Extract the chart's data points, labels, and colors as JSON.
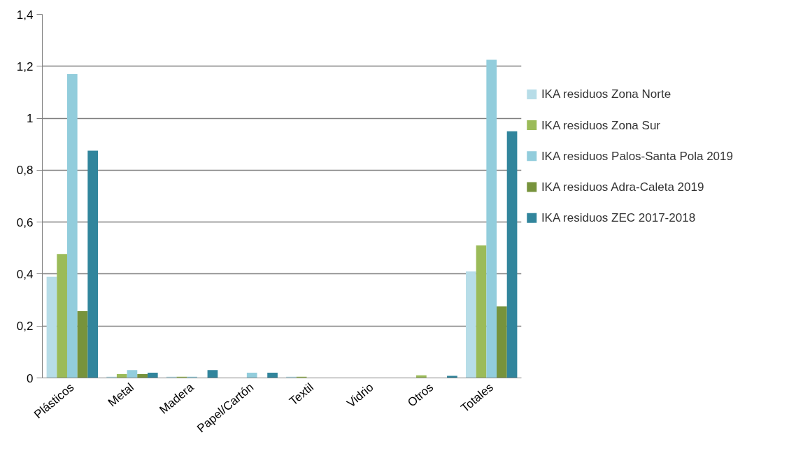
{
  "chart_data": {
    "type": "bar",
    "categories": [
      "Plásticos",
      "Metal",
      "Madera",
      "Papel/Cartón",
      "Textil",
      "Vidrio",
      "Otros",
      "Totales"
    ],
    "series": [
      {
        "name": "IKA residuos Zona Norte",
        "color": "#b7dde8",
        "values": [
          0.39,
          0.005,
          0.005,
          0,
          0.005,
          0,
          0,
          0.41
        ]
      },
      {
        "name": "IKA residuos Zona Sur",
        "color": "#9bbb59",
        "values": [
          0.477,
          0.015,
          0.005,
          0,
          0.005,
          0,
          0.01,
          0.51
        ]
      },
      {
        "name": "IKA residuos Palos-Santa Pola 2019",
        "color": "#92cddc",
        "values": [
          1.17,
          0.03,
          0.005,
          0.02,
          0,
          0,
          0,
          1.225
        ]
      },
      {
        "name": "IKA residuos Adra-Caleta 2019",
        "color": "#77933c",
        "values": [
          0.257,
          0.015,
          0,
          0,
          0,
          0,
          0,
          0.275
        ]
      },
      {
        "name": "IKA residuos ZEC 2017-2018",
        "color": "#31859c",
        "values": [
          0.875,
          0.02,
          0.03,
          0.02,
          0,
          0,
          0.008,
          0.95
        ]
      }
    ],
    "ylim": [
      0,
      1.4
    ],
    "yticks": [
      0,
      {
        "value": 0.2,
        "label": "0,2"
      },
      {
        "value": 0.4,
        "label": "0,4"
      },
      {
        "value": 0.6,
        "label": "0,6"
      },
      {
        "value": 0.8,
        "label": "0,8"
      },
      1,
      {
        "value": 1.2,
        "label": "1,2"
      },
      {
        "value": 1.4,
        "label": "1,4"
      }
    ],
    "grid": "y",
    "legend": "right"
  }
}
